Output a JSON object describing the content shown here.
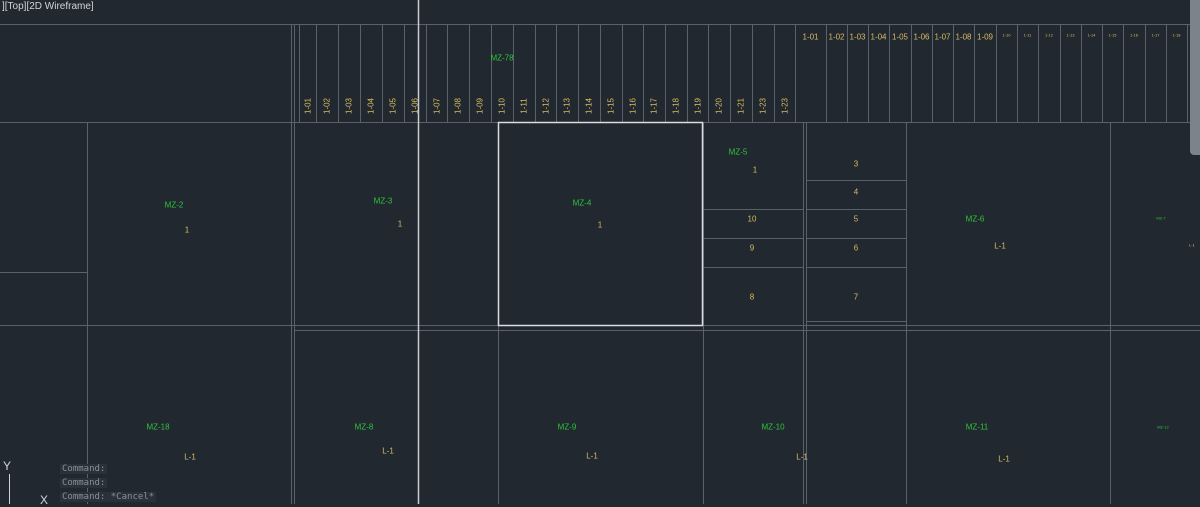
{
  "viewport_label": "][Top][2D Wireframe]",
  "colors": {
    "background": "#212830",
    "lines": "#5a616a",
    "highlight": "#d8dde2",
    "zone_label": "#2fc43a",
    "unit_label": "#d8bc62"
  },
  "top_strip_labels": [
    "1-01",
    "1-02",
    "1-03",
    "1-04",
    "1-05",
    "1-06",
    "1-07",
    "1-08",
    "1-09",
    "1-10",
    "1-11",
    "1-12",
    "1-13",
    "1-14",
    "1-15",
    "1-16",
    "1-17",
    "1-18",
    "1-19",
    "1-20",
    "1-21",
    "1-23",
    "1-23"
  ],
  "top_strip_zone": "MZ-78",
  "right_strip_labels": [
    "1-01",
    "1-02",
    "1-03",
    "1-04",
    "1-05",
    "1-06",
    "1-07",
    "1-08",
    "1-09",
    "1-10",
    "1-11",
    "1-12",
    "1-13",
    "1-14",
    "1-15",
    "1-16",
    "1-17",
    "1-18",
    "1-19"
  ],
  "zones": [
    {
      "name": "MZ-2",
      "unit": "1"
    },
    {
      "name": "MZ-3",
      "unit": "1"
    },
    {
      "name": "MZ-4",
      "unit": "1"
    },
    {
      "name": "MZ-5",
      "unit": "1"
    },
    {
      "name": "MZ-6",
      "unit": "L-1"
    },
    {
      "name": "MZ-7",
      "unit": "L-1"
    },
    {
      "name": "MZ-18",
      "unit": "L-1"
    },
    {
      "name": "MZ-8",
      "unit": "L-1"
    },
    {
      "name": "MZ-9",
      "unit": "L-1"
    },
    {
      "name": "MZ-10",
      "unit": "L-1"
    },
    {
      "name": "MZ-11",
      "unit": "L-1"
    },
    {
      "name": "MZ-12",
      "unit": ""
    }
  ],
  "sub_units": [
    "10",
    "9",
    "8",
    "3",
    "4",
    "5",
    "6",
    "7"
  ],
  "command_history": [
    "Command:",
    "Command:",
    "Command: *Cancel*"
  ],
  "ucs": {
    "y_label": "Y",
    "x_label": "X"
  }
}
